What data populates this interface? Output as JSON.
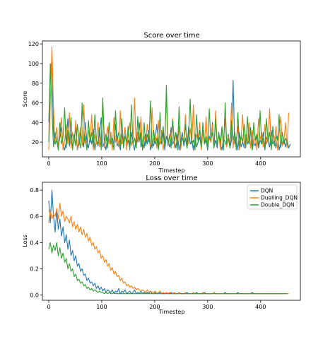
{
  "chart_data": [
    {
      "type": "line",
      "title": "Score over time",
      "xlabel": "Timestep",
      "ylabel": "Score",
      "xlim": [
        -12,
        475
      ],
      "ylim": [
        5,
        123
      ],
      "xticks": [
        0,
        100,
        200,
        300,
        400
      ],
      "yticks": [
        20,
        40,
        60,
        80,
        100,
        120
      ],
      "grid": false,
      "legend": null,
      "series": [
        {
          "color": "#1f77b4",
          "x_start": 0,
          "x_step": 3,
          "y": [
            40,
            95,
            102,
            30,
            18,
            22,
            14,
            25,
            35,
            18,
            12,
            20,
            44,
            16,
            28,
            15,
            22,
            35,
            12,
            18,
            30,
            22,
            15,
            40,
            20,
            14,
            25,
            18,
            33,
            12,
            22,
            16,
            28,
            45,
            15,
            20,
            12,
            25,
            18,
            30,
            14,
            22,
            38,
            16,
            20,
            12,
            28,
            18,
            35,
            15,
            22,
            14,
            30,
            18,
            12,
            25,
            20,
            40,
            15,
            22,
            14,
            28,
            18,
            32,
            12,
            20,
            16,
            25,
            38,
            14,
            22,
            18,
            30,
            12,
            26,
            20,
            15,
            35,
            18,
            22,
            14,
            28,
            12,
            20,
            30,
            16,
            24,
            14,
            36,
            18,
            22,
            12,
            28,
            15,
            20,
            25,
            14,
            32,
            18,
            22,
            12,
            26,
            20,
            40,
            15,
            22,
            14,
            30,
            18,
            12,
            24,
            20,
            16,
            28,
            14,
            22,
            83,
            18,
            25,
            12,
            30,
            15,
            20,
            14,
            26,
            18,
            22,
            35,
            12,
            20,
            16,
            28,
            14,
            22,
            18,
            30,
            12,
            25,
            20,
            15,
            32,
            18,
            22,
            14,
            26,
            12,
            20,
            18,
            24,
            15,
            22,
            14,
            18
          ]
        },
        {
          "color": "#ff7f0e",
          "x_start": 0,
          "x_step": 3,
          "y": [
            12,
            60,
            117,
            55,
            20,
            35,
            15,
            28,
            45,
            12,
            22,
            38,
            18,
            50,
            14,
            30,
            20,
            42,
            12,
            25,
            35,
            16,
            58,
            20,
            14,
            32,
            22,
            48,
            12,
            28,
            18,
            40,
            15,
            25,
            60,
            14,
            22,
            36,
            18,
            30,
            12,
            45,
            20,
            26,
            15,
            52,
            18,
            22,
            35,
            12,
            28,
            40,
            16,
            24,
            65,
            14,
            30,
            20,
            46,
            12,
            26,
            18,
            38,
            22,
            15,
            55,
            20,
            28,
            14,
            42,
            18,
            32,
            12,
            24,
            62,
            16,
            28,
            20,
            44,
            14,
            30,
            18,
            36,
            12,
            26,
            22,
            48,
            15,
            20,
            34,
            18,
            58,
            14,
            28,
            22,
            40,
            12,
            30,
            18,
            46,
            16,
            24,
            20,
            38,
            14,
            52,
            18,
            28,
            12,
            34,
            22,
            44,
            15,
            26,
            18,
            60,
            14,
            30,
            20,
            36,
            12,
            24,
            48,
            16,
            28,
            20,
            40,
            14,
            32,
            18,
            26,
            12,
            44,
            22,
            30,
            15,
            38,
            18,
            24,
            54,
            14,
            28,
            20,
            36,
            12,
            30,
            46,
            16,
            22,
            40,
            14,
            50
          ]
        },
        {
          "color": "#2ca02c",
          "x_start": 0,
          "x_step": 3,
          "y": [
            20,
            100,
            52,
            15,
            30,
            22,
            12,
            40,
            18,
            25,
            55,
            14,
            32,
            20,
            45,
            12,
            28,
            16,
            38,
            22,
            14,
            60,
            18,
            26,
            12,
            42,
            20,
            30,
            15,
            48,
            22,
            18,
            35,
            12,
            65,
            20,
            28,
            14,
            40,
            18,
            24,
            12,
            52,
            22,
            30,
            16,
            44,
            14,
            26,
            20,
            36,
            12,
            58,
            18,
            24,
            14,
            46,
            22,
            30,
            12,
            40,
            16,
            28,
            20,
            62,
            14,
            32,
            18,
            24,
            12,
            50,
            20,
            36,
            15,
            78,
            18,
            26,
            14,
            42,
            22,
            30,
            12,
            56,
            16,
            24,
            20,
            38,
            14,
            28,
            64,
            18,
            22,
            12,
            48,
            20,
            32,
            15,
            40,
            18,
            26,
            12,
            54,
            22,
            30,
            14,
            44,
            16,
            28,
            20,
            36,
            12,
            60,
            18,
            24,
            14,
            42,
            22,
            30,
            12,
            50,
            16,
            26,
            20,
            38,
            14,
            46,
            18,
            32,
            12,
            40,
            22,
            28,
            15,
            52,
            18,
            24,
            14,
            44,
            20,
            30,
            12,
            36,
            16,
            26,
            22,
            48,
            14,
            30,
            18,
            24,
            20,
            15
          ]
        }
      ]
    },
    {
      "type": "line",
      "title": "Loss over time",
      "xlabel": "Timestep",
      "ylabel": "Loss",
      "xlim": [
        -12,
        475
      ],
      "ylim": [
        -0.04,
        0.86
      ],
      "xticks": [
        0,
        100,
        200,
        300,
        400
      ],
      "yticks": [
        0.0,
        0.2,
        0.4,
        0.6,
        0.8
      ],
      "grid": false,
      "legend": "top-right",
      "series": [
        {
          "name": "DQN",
          "color": "#1f77b4",
          "x_start": 0,
          "x_step": 3,
          "y": [
            0.72,
            0.55,
            0.8,
            0.6,
            0.48,
            0.65,
            0.5,
            0.58,
            0.45,
            0.52,
            0.4,
            0.46,
            0.35,
            0.42,
            0.3,
            0.34,
            0.26,
            0.3,
            0.22,
            0.24,
            0.18,
            0.2,
            0.15,
            0.16,
            0.11,
            0.13,
            0.09,
            0.1,
            0.07,
            0.09,
            0.05,
            0.07,
            0.04,
            0.06,
            0.03,
            0.05,
            0.02,
            0.04,
            0.03,
            0.02,
            0.04,
            0.01,
            0.03,
            0.02,
            0.05,
            0.01,
            0.03,
            0.02,
            0.04,
            0.01,
            0.02,
            0.03,
            0.01,
            0.02,
            0.04,
            0.01,
            0.02,
            0.01,
            0.03,
            0.01,
            0.02,
            0.01,
            0.02,
            0.01,
            0.03,
            0.01,
            0.01,
            0.02,
            0.01,
            0.01,
            0.02,
            0.01,
            0.01,
            0.01,
            0.02,
            0.01,
            0.01,
            0.02,
            0.01,
            0.01,
            0.01,
            0.01,
            0.02,
            0.01,
            0.01,
            0.01,
            0.01,
            0.02,
            0.01,
            0.01,
            0.01,
            0.01,
            0.01,
            0.02,
            0.01,
            0.01,
            0.01,
            0.01,
            0.02,
            0.01,
            0.01,
            0.01,
            0.01,
            0.01,
            0.02,
            0.01,
            0.01,
            0.01,
            0.01,
            0.01,
            0.01,
            0.02,
            0.01,
            0.01,
            0.01,
            0.01,
            0.01,
            0.01,
            0.01,
            0.02,
            0.01,
            0.01,
            0.01,
            0.01,
            0.01,
            0.01,
            0.01,
            0.01,
            0.02,
            0.01,
            0.01,
            0.01,
            0.01,
            0.01,
            0.01,
            0.01,
            0.01,
            0.01,
            0.01,
            0.01,
            0.01,
            0.01,
            0.01,
            0.01,
            0.01,
            0.01,
            0.01,
            0.01
          ]
        },
        {
          "name": "Duelling_DQN",
          "color": "#ff7f0e",
          "x_start": 0,
          "x_step": 3,
          "y": [
            0.55,
            0.65,
            0.58,
            0.62,
            0.6,
            0.66,
            0.58,
            0.7,
            0.6,
            0.64,
            0.56,
            0.6,
            0.58,
            0.55,
            0.6,
            0.52,
            0.56,
            0.5,
            0.54,
            0.48,
            0.52,
            0.46,
            0.5,
            0.44,
            0.47,
            0.41,
            0.44,
            0.38,
            0.4,
            0.35,
            0.37,
            0.32,
            0.34,
            0.28,
            0.3,
            0.25,
            0.27,
            0.22,
            0.24,
            0.19,
            0.21,
            0.16,
            0.18,
            0.14,
            0.15,
            0.11,
            0.13,
            0.09,
            0.1,
            0.07,
            0.08,
            0.06,
            0.07,
            0.05,
            0.06,
            0.04,
            0.05,
            0.04,
            0.03,
            0.04,
            0.03,
            0.02,
            0.04,
            0.02,
            0.03,
            0.02,
            0.02,
            0.03,
            0.01,
            0.02,
            0.03,
            0.01,
            0.02,
            0.01,
            0.02,
            0.01,
            0.02,
            0.01,
            0.01,
            0.02,
            0.01,
            0.01,
            0.02,
            0.01,
            0.01,
            0.01,
            0.02,
            0.01,
            0.01,
            0.01,
            0.01,
            0.02,
            0.01,
            0.01,
            0.01,
            0.01,
            0.01,
            0.02,
            0.01,
            0.01,
            0.01,
            0.01,
            0.01,
            0.01,
            0.02,
            0.01,
            0.01,
            0.01,
            0.01,
            0.01,
            0.01,
            0.01,
            0.01,
            0.01,
            0.01,
            0.01,
            0.01,
            0.01,
            0.01,
            0.01,
            0.01,
            0.01,
            0.01,
            0.01,
            0.01,
            0.01,
            0.01,
            0.01,
            0.01,
            0.01,
            0.01,
            0.01,
            0.01,
            0.01,
            0.01,
            0.01,
            0.01,
            0.01,
            0.01,
            0.01,
            0.01,
            0.01,
            0.01,
            0.01,
            0.01,
            0.01,
            0.01,
            0.01,
            0.01,
            0.01,
            0.01,
            0.01
          ]
        },
        {
          "name": "Double_DQN",
          "color": "#2ca02c",
          "x_start": 0,
          "x_step": 3,
          "y": [
            0.35,
            0.4,
            0.32,
            0.38,
            0.34,
            0.4,
            0.3,
            0.36,
            0.28,
            0.32,
            0.25,
            0.28,
            0.2,
            0.24,
            0.18,
            0.2,
            0.14,
            0.16,
            0.11,
            0.12,
            0.09,
            0.1,
            0.07,
            0.08,
            0.05,
            0.06,
            0.04,
            0.05,
            0.03,
            0.04,
            0.03,
            0.02,
            0.03,
            0.02,
            0.02,
            0.01,
            0.02,
            0.01,
            0.02,
            0.01,
            0.01,
            0.02,
            0.01,
            0.01,
            0.01,
            0.01,
            0.01,
            0.01,
            0.01,
            0.01,
            0.01,
            0.01,
            0.01,
            0.01,
            0.01,
            0.01,
            0.01,
            0.01,
            0.01,
            0.01,
            0.01,
            0.01,
            0.01,
            0.01,
            0.01,
            0.01,
            0.01,
            0.01,
            0.01,
            0.01,
            0.01,
            0.01,
            0.01,
            0.01,
            0.01,
            0.01,
            0.01,
            0.01,
            0.01,
            0.01,
            0.01,
            0.01,
            0.01,
            0.01,
            0.01,
            0.01,
            0.01,
            0.01,
            0.01,
            0.01,
            0.01,
            0.01,
            0.01,
            0.01,
            0.01,
            0.01,
            0.01,
            0.01,
            0.01,
            0.01,
            0.01,
            0.01,
            0.01,
            0.01,
            0.01,
            0.01,
            0.01,
            0.01,
            0.01,
            0.01,
            0.01,
            0.01,
            0.01,
            0.01,
            0.01,
            0.01,
            0.01,
            0.01,
            0.01,
            0.01,
            0.01,
            0.01,
            0.01,
            0.01,
            0.01,
            0.01,
            0.01,
            0.01,
            0.01,
            0.01,
            0.01,
            0.01,
            0.01,
            0.01,
            0.01,
            0.01,
            0.01,
            0.01,
            0.01,
            0.01,
            0.01,
            0.01,
            0.01,
            0.01,
            0.01,
            0.01,
            0.01,
            0.01,
            0.01,
            0.01,
            0.01
          ]
        }
      ]
    }
  ]
}
